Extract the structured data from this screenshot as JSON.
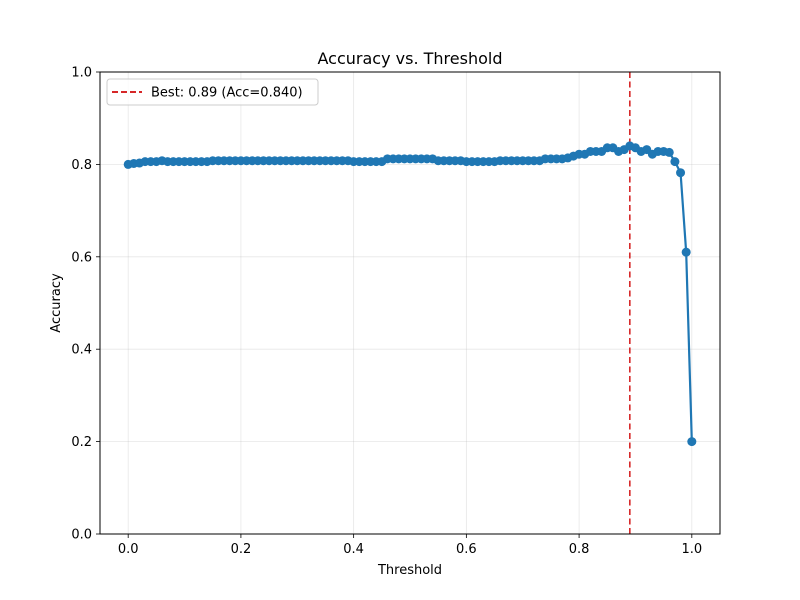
{
  "chart_data": {
    "type": "line",
    "title": "Accuracy vs. Threshold",
    "xlabel": "Threshold",
    "ylabel": "Accuracy",
    "xlim": [
      -0.05,
      1.05
    ],
    "ylim": [
      0.0,
      1.0
    ],
    "xticks": [
      "0.0",
      "0.2",
      "0.4",
      "0.6",
      "0.8",
      "1.0"
    ],
    "yticks": [
      "0.0",
      "0.2",
      "0.4",
      "0.6",
      "0.8",
      "1.0"
    ],
    "grid": true,
    "legend_position": "top-left",
    "series": [
      {
        "color": "#1f77b4",
        "marker": "circle",
        "x": [
          0.0,
          0.01,
          0.02,
          0.03,
          0.04,
          0.05,
          0.06,
          0.07,
          0.08,
          0.09,
          0.1,
          0.11,
          0.12,
          0.13,
          0.14,
          0.15,
          0.16,
          0.17,
          0.18,
          0.19,
          0.2,
          0.21,
          0.22,
          0.23,
          0.24,
          0.25,
          0.26,
          0.27,
          0.28,
          0.29,
          0.3,
          0.31,
          0.32,
          0.33,
          0.34,
          0.35,
          0.36,
          0.37,
          0.38,
          0.39,
          0.4,
          0.41,
          0.42,
          0.43,
          0.44,
          0.45,
          0.46,
          0.47,
          0.48,
          0.49,
          0.5,
          0.51,
          0.52,
          0.53,
          0.54,
          0.55,
          0.56,
          0.57,
          0.58,
          0.59,
          0.6,
          0.61,
          0.62,
          0.63,
          0.64,
          0.65,
          0.66,
          0.67,
          0.68,
          0.69,
          0.7,
          0.71,
          0.72,
          0.73,
          0.74,
          0.75,
          0.76,
          0.77,
          0.78,
          0.79,
          0.8,
          0.81,
          0.82,
          0.83,
          0.84,
          0.85,
          0.86,
          0.87,
          0.88,
          0.89,
          0.9,
          0.91,
          0.92,
          0.93,
          0.94,
          0.95,
          0.96,
          0.97,
          0.98,
          0.99,
          1.0
        ],
        "y": [
          0.8,
          0.802,
          0.803,
          0.806,
          0.806,
          0.806,
          0.808,
          0.806,
          0.806,
          0.806,
          0.806,
          0.806,
          0.806,
          0.806,
          0.806,
          0.808,
          0.808,
          0.808,
          0.808,
          0.808,
          0.808,
          0.808,
          0.808,
          0.808,
          0.808,
          0.808,
          0.808,
          0.808,
          0.808,
          0.808,
          0.808,
          0.808,
          0.808,
          0.808,
          0.808,
          0.808,
          0.808,
          0.808,
          0.808,
          0.808,
          0.806,
          0.806,
          0.806,
          0.806,
          0.806,
          0.806,
          0.812,
          0.812,
          0.812,
          0.812,
          0.812,
          0.812,
          0.812,
          0.812,
          0.812,
          0.808,
          0.808,
          0.808,
          0.808,
          0.808,
          0.806,
          0.806,
          0.806,
          0.806,
          0.806,
          0.806,
          0.808,
          0.808,
          0.808,
          0.808,
          0.808,
          0.808,
          0.808,
          0.808,
          0.812,
          0.812,
          0.812,
          0.812,
          0.814,
          0.818,
          0.822,
          0.822,
          0.828,
          0.828,
          0.828,
          0.836,
          0.836,
          0.828,
          0.832,
          0.84,
          0.836,
          0.828,
          0.832,
          0.822,
          0.828,
          0.828,
          0.826,
          0.806,
          0.782,
          0.61,
          0.2
        ]
      }
    ],
    "reference_line": {
      "x": 0.89,
      "color": "#d62728",
      "style": "dashed",
      "label": "Best: 0.89 (Acc=0.840)"
    }
  }
}
